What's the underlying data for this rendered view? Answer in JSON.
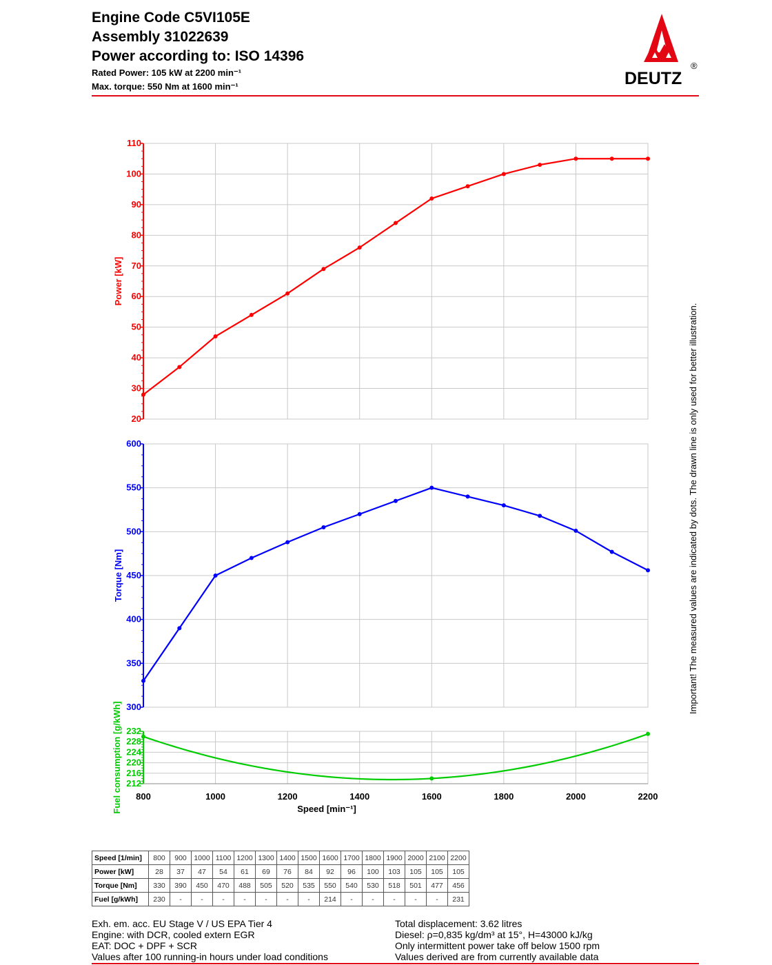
{
  "header": {
    "title_lines": [
      "Engine Code C5VI105E",
      "Assembly 31022639",
      "Power according to: ISO 14396"
    ],
    "rated_power": "Rated Power: 105 kW at 2200 min⁻¹",
    "max_torque": "Max. torque: 550 Nm at 1600 min⁻¹"
  },
  "logo": {
    "text": "DEUTZ",
    "registered": "®",
    "color": "#e30613"
  },
  "side_note": "Important! The measured values are indicated by dots. The drawn line is only used for better illustration.",
  "chart_data": [
    {
      "type": "line",
      "ylabel": "Power [kW]",
      "color": "#ff0000",
      "x": [
        800,
        900,
        1000,
        1100,
        1200,
        1300,
        1400,
        1500,
        1600,
        1700,
        1800,
        1900,
        2000,
        2100,
        2200
      ],
      "values": [
        28,
        37,
        47,
        54,
        61,
        69,
        76,
        84,
        92,
        96,
        100,
        103,
        105,
        105,
        105
      ],
      "xlim": [
        800,
        2200
      ],
      "ylim": [
        20,
        110
      ],
      "yticks": [
        20,
        30,
        40,
        50,
        60,
        70,
        80,
        90,
        100,
        110
      ],
      "grid": true
    },
    {
      "type": "line",
      "ylabel": "Torque [Nm]",
      "color": "#0000ff",
      "x": [
        800,
        900,
        1000,
        1100,
        1200,
        1300,
        1400,
        1500,
        1600,
        1700,
        1800,
        1900,
        2000,
        2100,
        2200
      ],
      "values": [
        330,
        390,
        450,
        470,
        488,
        505,
        520,
        535,
        550,
        540,
        530,
        518,
        501,
        477,
        456
      ],
      "xlim": [
        800,
        2200
      ],
      "ylim": [
        300,
        600
      ],
      "yticks": [
        300,
        350,
        400,
        450,
        500,
        550,
        600
      ],
      "grid": true
    },
    {
      "type": "line",
      "ylabel": "Fuel consumption [g/kWh]",
      "xlabel": "Speed [min⁻¹]",
      "color": "#00cc00",
      "x": [
        800,
        1600,
        2200
      ],
      "values": [
        230,
        214,
        231
      ],
      "xlim": [
        800,
        2200
      ],
      "ylim": [
        212,
        232
      ],
      "yticks": [
        212,
        216,
        220,
        224,
        228,
        232
      ],
      "xticks": [
        800,
        1000,
        1200,
        1400,
        1600,
        1800,
        2000,
        2200
      ],
      "grid": true
    }
  ],
  "table": {
    "rows": [
      {
        "label": "Speed [1/min]",
        "cells": [
          "800",
          "900",
          "1000",
          "1100",
          "1200",
          "1300",
          "1400",
          "1500",
          "1600",
          "1700",
          "1800",
          "1900",
          "2000",
          "2100",
          "2200"
        ]
      },
      {
        "label": "Power [kW]",
        "cells": [
          "28",
          "37",
          "47",
          "54",
          "61",
          "69",
          "76",
          "84",
          "92",
          "96",
          "100",
          "103",
          "105",
          "105",
          "105"
        ]
      },
      {
        "label": "Torque [Nm]",
        "cells": [
          "330",
          "390",
          "450",
          "470",
          "488",
          "505",
          "520",
          "535",
          "550",
          "540",
          "530",
          "518",
          "501",
          "477",
          "456"
        ]
      },
      {
        "label": "Fuel [g/kWh]",
        "cells": [
          "230",
          "-",
          "-",
          "-",
          "-",
          "-",
          "-",
          "-",
          "214",
          "-",
          "-",
          "-",
          "-",
          "-",
          "231"
        ]
      }
    ]
  },
  "footer": {
    "left": [
      "Exh. em. acc. EU Stage V / US EPA Tier 4",
      "Engine: with DCR, cooled extern EGR",
      "EAT: DOC + DPF + SCR",
      "Values after 100 running-in hours under load conditions"
    ],
    "right": [
      "Total displacement: 3.62 litres",
      "Diesel: ρ=0,835 kg/dm³ at 15°, H=43000 kJ/kg",
      "Only intermittent power take off below 1500 rpm",
      "Values derived are from currently available data"
    ]
  }
}
